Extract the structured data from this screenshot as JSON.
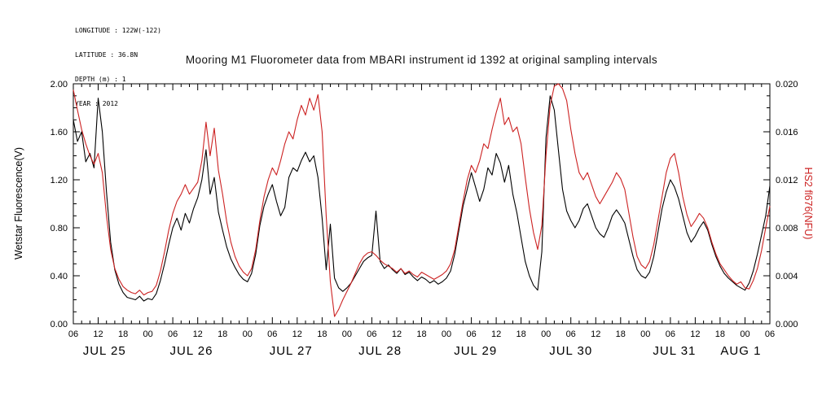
{
  "header": {
    "longitude": "LONGITUDE : 122W(-122)",
    "latitude": "LATITUDE : 36.8N",
    "depth": "DEPTH (m) : 1",
    "year": "YEAR : 2012"
  },
  "title": "Mooring M1 Fluorometer data from MBARI instrument id 1392 at original sampling intervals",
  "chart_data": {
    "type": "line",
    "title": "Mooring M1 Fluorometer data from MBARI instrument id 1392 at original sampling intervals",
    "xlabel": "",
    "x_unit": "hours since 2012-07-25 00:00",
    "x_start": 6,
    "x_end": 174,
    "x_step": 1,
    "x_major_tick_hours": 6,
    "grid": false,
    "x_tick_labels": [
      "06",
      "12",
      "18",
      "00",
      "06",
      "12",
      "18",
      "00",
      "06",
      "12",
      "18",
      "00",
      "06",
      "12",
      "18",
      "00",
      "06",
      "12",
      "18",
      "00",
      "06",
      "12",
      "18",
      "00",
      "06",
      "12",
      "18",
      "00",
      "06"
    ],
    "day_labels": [
      {
        "label": "JUL 25",
        "hour": 13.5
      },
      {
        "label": "JUL 26",
        "hour": 34.5
      },
      {
        "label": "JUL 27",
        "hour": 58.5
      },
      {
        "label": "JUL 28",
        "hour": 80
      },
      {
        "label": "JUL 29",
        "hour": 103
      },
      {
        "label": "JUL 30",
        "hour": 126
      },
      {
        "label": "JUL 31",
        "hour": 151
      },
      {
        "label": "AUG 1",
        "hour": 167
      }
    ],
    "left_axis": {
      "label": "Wetstar Fluorescence(V)",
      "min": 0,
      "max": 2,
      "ticks": [
        "0.00",
        "0.40",
        "0.80",
        "1.20",
        "1.60",
        "2.00"
      ],
      "color": "#000000"
    },
    "right_axis": {
      "label": "HS2 fl676(NFU)",
      "min": 0,
      "max": 0.02,
      "ticks": [
        "0.000",
        "0.004",
        "0.008",
        "0.012",
        "0.016",
        "0.020"
      ],
      "color": "#cc2222"
    },
    "series": [
      {
        "name": "Wetstar Fluorescence(V)",
        "axis": "left",
        "color": "#000000",
        "values": [
          1.7,
          1.52,
          1.6,
          1.35,
          1.42,
          1.3,
          1.88,
          1.6,
          1.1,
          0.68,
          0.45,
          0.33,
          0.26,
          0.22,
          0.21,
          0.2,
          0.23,
          0.19,
          0.21,
          0.2,
          0.25,
          0.36,
          0.5,
          0.66,
          0.8,
          0.88,
          0.78,
          0.92,
          0.84,
          0.96,
          1.05,
          1.2,
          1.45,
          1.08,
          1.22,
          0.93,
          0.78,
          0.64,
          0.54,
          0.47,
          0.41,
          0.37,
          0.35,
          0.42,
          0.58,
          0.82,
          0.98,
          1.08,
          1.16,
          1.02,
          0.9,
          0.97,
          1.22,
          1.3,
          1.27,
          1.36,
          1.43,
          1.35,
          1.4,
          1.22,
          0.88,
          0.45,
          0.83,
          0.38,
          0.3,
          0.27,
          0.3,
          0.34,
          0.4,
          0.46,
          0.52,
          0.55,
          0.57,
          0.94,
          0.52,
          0.46,
          0.49,
          0.45,
          0.42,
          0.46,
          0.41,
          0.43,
          0.39,
          0.36,
          0.39,
          0.37,
          0.34,
          0.36,
          0.33,
          0.35,
          0.38,
          0.44,
          0.58,
          0.78,
          0.98,
          1.12,
          1.26,
          1.14,
          1.02,
          1.12,
          1.3,
          1.24,
          1.42,
          1.34,
          1.18,
          1.32,
          1.08,
          0.92,
          0.72,
          0.52,
          0.4,
          0.32,
          0.28,
          0.6,
          1.55,
          1.9,
          1.78,
          1.45,
          1.12,
          0.94,
          0.86,
          0.8,
          0.86,
          0.96,
          1.0,
          0.9,
          0.8,
          0.75,
          0.72,
          0.8,
          0.9,
          0.95,
          0.9,
          0.84,
          0.7,
          0.56,
          0.45,
          0.4,
          0.38,
          0.43,
          0.56,
          0.76,
          0.96,
          1.1,
          1.2,
          1.14,
          1.04,
          0.9,
          0.76,
          0.68,
          0.73,
          0.8,
          0.85,
          0.78,
          0.66,
          0.56,
          0.48,
          0.42,
          0.38,
          0.35,
          0.32,
          0.3,
          0.28,
          0.34,
          0.44,
          0.58,
          0.74,
          0.9,
          1.15
        ]
      },
      {
        "name": "HS2 fl676(NFU)",
        "axis": "right",
        "color": "#cc2222",
        "values": [
          0.0195,
          0.0178,
          0.0162,
          0.015,
          0.014,
          0.0133,
          0.0142,
          0.0126,
          0.009,
          0.0062,
          0.0046,
          0.0037,
          0.0031,
          0.0028,
          0.0026,
          0.0025,
          0.0028,
          0.0024,
          0.0026,
          0.0027,
          0.0032,
          0.0044,
          0.006,
          0.0078,
          0.0092,
          0.0102,
          0.0108,
          0.0116,
          0.0108,
          0.0113,
          0.0118,
          0.0136,
          0.0168,
          0.014,
          0.0163,
          0.0128,
          0.0108,
          0.0085,
          0.0068,
          0.0056,
          0.0048,
          0.0043,
          0.004,
          0.0046,
          0.0062,
          0.0086,
          0.0106,
          0.012,
          0.013,
          0.0124,
          0.0136,
          0.015,
          0.016,
          0.0154,
          0.017,
          0.0182,
          0.0174,
          0.0188,
          0.0178,
          0.0191,
          0.016,
          0.009,
          0.0035,
          0.0006,
          0.0012,
          0.002,
          0.0027,
          0.0034,
          0.0042,
          0.005,
          0.0056,
          0.0059,
          0.006,
          0.0057,
          0.0053,
          0.005,
          0.0048,
          0.0046,
          0.0043,
          0.0046,
          0.0042,
          0.0044,
          0.0041,
          0.0039,
          0.0043,
          0.0041,
          0.0039,
          0.0037,
          0.0039,
          0.0041,
          0.0044,
          0.005,
          0.0062,
          0.0082,
          0.0102,
          0.012,
          0.0132,
          0.0126,
          0.0136,
          0.015,
          0.0146,
          0.0162,
          0.0176,
          0.0188,
          0.0166,
          0.0172,
          0.016,
          0.0164,
          0.015,
          0.0122,
          0.0096,
          0.0076,
          0.0062,
          0.0082,
          0.014,
          0.0182,
          0.0198,
          0.02,
          0.0196,
          0.0186,
          0.0162,
          0.0142,
          0.0126,
          0.012,
          0.0126,
          0.0116,
          0.0106,
          0.01,
          0.0106,
          0.0112,
          0.0118,
          0.0126,
          0.0121,
          0.0112,
          0.0092,
          0.0072,
          0.0056,
          0.0049,
          0.0046,
          0.0052,
          0.0066,
          0.0086,
          0.0106,
          0.0126,
          0.0138,
          0.0142,
          0.0126,
          0.0106,
          0.0091,
          0.0081,
          0.0086,
          0.0092,
          0.0088,
          0.008,
          0.0068,
          0.0058,
          0.005,
          0.0045,
          0.004,
          0.0036,
          0.0033,
          0.0035,
          0.003,
          0.0029,
          0.0036,
          0.0046,
          0.0061,
          0.008,
          0.0098
        ]
      }
    ]
  }
}
